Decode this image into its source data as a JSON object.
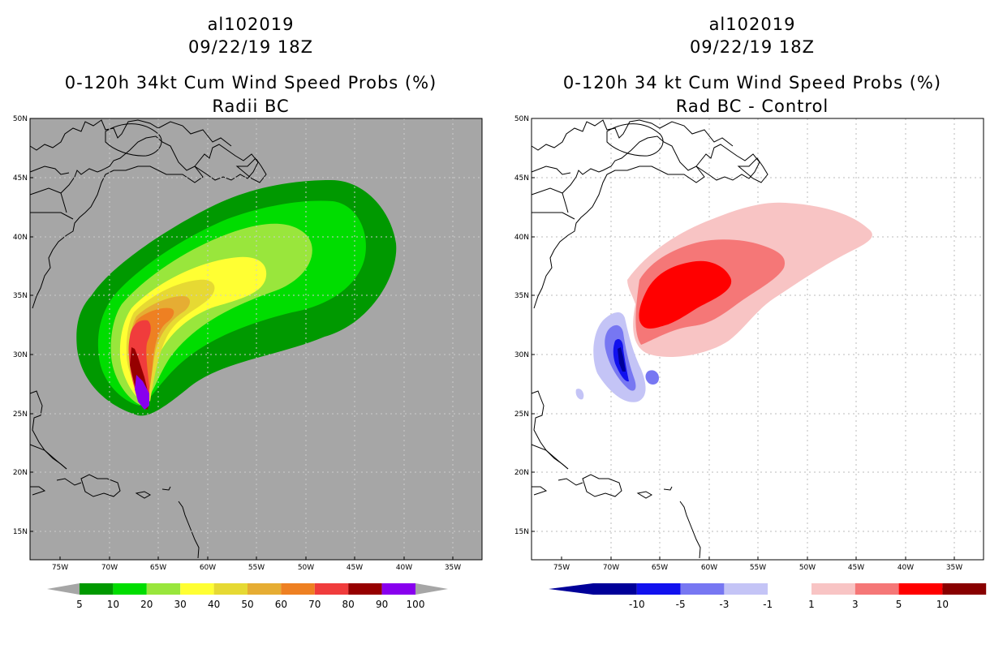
{
  "panels": [
    {
      "storm_id": "al102019",
      "datetime": "09/22/19 18Z",
      "product": "0-120h 34kt Cum Wind Speed Probs (%)",
      "subtitle": "Radii BC",
      "background": "#a6a6a6",
      "colorbar": {
        "colors": [
          "#009900",
          "#00dd00",
          "#99e63c",
          "#ffff33",
          "#e6d933",
          "#e6ad33",
          "#ee8022",
          "#f03c3c",
          "#960000",
          "#8800ee"
        ],
        "labels": [
          "5",
          "10",
          "20",
          "30",
          "40",
          "50",
          "60",
          "70",
          "80",
          "90",
          "100"
        ]
      }
    },
    {
      "storm_id": "al102019",
      "datetime": "09/22/19 18Z",
      "product": "0-120h 34 kt Cum Wind Speed Probs (%)",
      "subtitle": "Rad BC - Control",
      "background": "#ffffff",
      "colorbar": {
        "colors": [
          "#000099",
          "#1111ee",
          "#7777f2",
          "#c4c4f6",
          "#ffffff",
          "#f8c4c4",
          "#f57777",
          "#ff0000",
          "#880000"
        ],
        "labels": [
          "-10",
          "-5",
          "-3",
          "-1",
          "1",
          "3",
          "5",
          "10"
        ]
      }
    }
  ],
  "lat_labels": [
    "50N",
    "45N",
    "40N",
    "35N",
    "30N",
    "25N",
    "20N",
    "15N"
  ],
  "lon_labels": [
    "75W",
    "70W",
    "65W",
    "60W",
    "55W",
    "50W",
    "45W",
    "40W",
    "35W"
  ]
}
